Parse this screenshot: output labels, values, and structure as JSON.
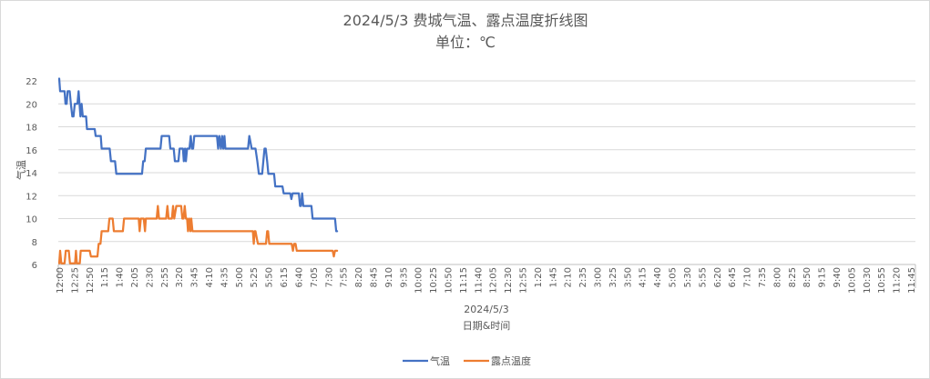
{
  "chart_data": {
    "type": "line",
    "title": "2024/5/3 费城气温、露点温度折线图",
    "subtitle": "单位：℃",
    "xlabel": "日期&时间",
    "ylabel": "气温",
    "x_group_label": "2024/5/3",
    "ylim": [
      6,
      22
    ],
    "yticks": [
      6,
      8,
      10,
      12,
      14,
      16,
      18,
      20,
      22
    ],
    "grid": "horizontal",
    "legend_position": "bottom",
    "xtick_labels": [
      "12:00",
      "12:25",
      "12:50",
      "1:15",
      "1:40",
      "2:05",
      "2:30",
      "2:55",
      "3:20",
      "3:45",
      "4:10",
      "4:35",
      "5:00",
      "5:25",
      "5:50",
      "6:15",
      "6:40",
      "7:05",
      "7:30",
      "7:55",
      "8:20",
      "8:45",
      "9:10",
      "9:35",
      "10:00",
      "10:25",
      "10:50",
      "11:15",
      "11:40",
      "12:05",
      "12:30",
      "12:55",
      "1:20",
      "1:45",
      "2:10",
      "2:35",
      "3:00",
      "3:25",
      "3:50",
      "4:15",
      "4:40",
      "5:05",
      "5:30",
      "5:55",
      "6:20",
      "6:45",
      "7:10",
      "7:35",
      "8:00",
      "8:25",
      "8:50",
      "9:15",
      "9:40",
      "10:05",
      "10:30",
      "10:55",
      "11:20",
      "11:45"
    ],
    "series": [
      {
        "name": "气温",
        "color": "#4472c4",
        "points": [
          [
            0,
            22.2
          ],
          [
            0.3,
            21.1
          ],
          [
            1.8,
            21.1
          ],
          [
            2.1,
            20
          ],
          [
            2.5,
            20
          ],
          [
            2.8,
            21.1
          ],
          [
            3.5,
            21.1
          ],
          [
            3.9,
            20
          ],
          [
            4.4,
            18.9
          ],
          [
            4.8,
            18.9
          ],
          [
            5.2,
            20
          ],
          [
            6.1,
            20
          ],
          [
            6.5,
            21.1
          ],
          [
            7.1,
            18.9
          ],
          [
            7.5,
            20
          ],
          [
            7.9,
            18.9
          ],
          [
            9,
            18.9
          ],
          [
            9.3,
            17.8
          ],
          [
            11.9,
            17.8
          ],
          [
            12.2,
            17.2
          ],
          [
            13.9,
            17.2
          ],
          [
            14.2,
            16.1
          ],
          [
            16.9,
            16.1
          ],
          [
            17.3,
            15
          ],
          [
            18.7,
            15
          ],
          [
            19.1,
            13.9
          ],
          [
            27.7,
            13.9
          ],
          [
            28.1,
            15
          ],
          [
            28.6,
            15
          ],
          [
            29,
            16.1
          ],
          [
            33.9,
            16.1
          ],
          [
            34.3,
            17.2
          ],
          [
            36.8,
            17.2
          ],
          [
            37.2,
            16.1
          ],
          [
            38.3,
            16.1
          ],
          [
            38.7,
            15
          ],
          [
            39.9,
            15
          ],
          [
            40.3,
            16.1
          ],
          [
            41.4,
            16.1
          ],
          [
            41.7,
            15
          ],
          [
            42.1,
            16.1
          ],
          [
            42.4,
            15
          ],
          [
            42.8,
            16.1
          ],
          [
            43.6,
            16.1
          ],
          [
            44,
            17.2
          ],
          [
            44.4,
            16.1
          ],
          [
            44.8,
            16.1
          ],
          [
            45.2,
            17.2
          ],
          [
            52.8,
            17.2
          ],
          [
            53.2,
            16.1
          ],
          [
            53.6,
            17.2
          ],
          [
            54.1,
            16.1
          ],
          [
            54.5,
            17.2
          ],
          [
            54.9,
            16.1
          ],
          [
            55.3,
            17.2
          ],
          [
            55.6,
            16.1
          ],
          [
            63.2,
            16.1
          ],
          [
            63.6,
            17.2
          ],
          [
            64.4,
            16.1
          ],
          [
            65.7,
            16.1
          ],
          [
            66.3,
            15
          ],
          [
            66.8,
            13.9
          ],
          [
            67.9,
            13.9
          ],
          [
            68.3,
            15
          ],
          [
            68.7,
            16.1
          ],
          [
            69.1,
            16.1
          ],
          [
            69.6,
            15
          ],
          [
            70,
            13.9
          ],
          [
            71.9,
            13.9
          ],
          [
            72.3,
            12.8
          ],
          [
            74.7,
            12.8
          ],
          [
            75.1,
            12.2
          ],
          [
            77.3,
            12.2
          ],
          [
            77.7,
            11.7
          ],
          [
            78.1,
            12.2
          ],
          [
            80.2,
            12.2
          ],
          [
            80.6,
            11.1
          ],
          [
            80.9,
            11.1
          ],
          [
            81.3,
            12.2
          ],
          [
            81.7,
            11.1
          ],
          [
            84.4,
            11.1
          ],
          [
            84.8,
            10
          ],
          [
            92.3,
            10
          ],
          [
            92.7,
            8.9
          ],
          [
            93,
            8.9
          ]
        ]
      },
      {
        "name": "露点温度",
        "color": "#ed7d31",
        "points": [
          [
            0,
            6.1
          ],
          [
            0.3,
            7.2
          ],
          [
            0.7,
            6.1
          ],
          [
            1.8,
            6.1
          ],
          [
            2.2,
            7.2
          ],
          [
            3.2,
            7.2
          ],
          [
            3.6,
            6.1
          ],
          [
            5.3,
            6.1
          ],
          [
            5.6,
            7.2
          ],
          [
            5.9,
            6.1
          ],
          [
            6.9,
            6.1
          ],
          [
            7.2,
            7.2
          ],
          [
            10.2,
            7.2
          ],
          [
            10.6,
            6.7
          ],
          [
            12.8,
            6.7
          ],
          [
            13.2,
            7.8
          ],
          [
            13.8,
            7.8
          ],
          [
            14.2,
            8.9
          ],
          [
            16.4,
            8.9
          ],
          [
            16.8,
            10
          ],
          [
            17.9,
            10
          ],
          [
            18.3,
            8.9
          ],
          [
            21.3,
            8.9
          ],
          [
            21.7,
            10
          ],
          [
            26.6,
            10
          ],
          [
            26.9,
            8.9
          ],
          [
            27.3,
            10
          ],
          [
            28.3,
            10
          ],
          [
            28.7,
            8.9
          ],
          [
            29,
            10
          ],
          [
            32.6,
            10
          ],
          [
            33,
            11.1
          ],
          [
            33.4,
            10
          ],
          [
            35.8,
            10
          ],
          [
            36.2,
            11.1
          ],
          [
            36.6,
            10
          ],
          [
            37.7,
            10
          ],
          [
            38.1,
            11.1
          ],
          [
            38.5,
            10
          ],
          [
            39.2,
            11.1
          ],
          [
            40.8,
            11.1
          ],
          [
            41.2,
            10
          ],
          [
            41.6,
            10
          ],
          [
            42,
            11.1
          ],
          [
            42.4,
            10
          ],
          [
            42.8,
            10
          ],
          [
            43.1,
            8.9
          ],
          [
            43.5,
            10
          ],
          [
            43.9,
            8.9
          ],
          [
            44.2,
            10
          ],
          [
            44.6,
            8.9
          ],
          [
            64.8,
            8.9
          ],
          [
            65.1,
            7.8
          ],
          [
            65.4,
            8.9
          ],
          [
            65.7,
            8.9
          ],
          [
            66.1,
            8.3
          ],
          [
            66.5,
            7.8
          ],
          [
            69.2,
            7.8
          ],
          [
            69.6,
            8.9
          ],
          [
            69.9,
            8.9
          ],
          [
            70.3,
            7.8
          ],
          [
            77.8,
            7.8
          ],
          [
            78.2,
            7.2
          ],
          [
            78.6,
            7.8
          ],
          [
            79.1,
            7.8
          ],
          [
            79.5,
            7.2
          ],
          [
            91.5,
            7.2
          ],
          [
            91.9,
            6.7
          ],
          [
            92.3,
            7.2
          ],
          [
            93,
            7.2
          ]
        ]
      }
    ]
  }
}
